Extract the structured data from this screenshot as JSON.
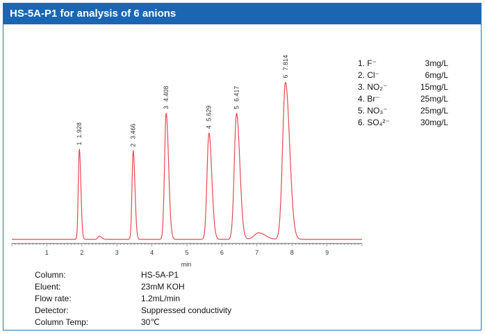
{
  "header": {
    "title": "HS-5A-P1 for analysis of 6 anions"
  },
  "legend": [
    {
      "ion": "1. F⁻",
      "conc": "3mg/L"
    },
    {
      "ion": "2. Cl⁻",
      "conc": "6mg/L"
    },
    {
      "ion": "3. NO₂⁻",
      "conc": "15mg/L"
    },
    {
      "ion": "4. Br⁻",
      "conc": "25mg/L"
    },
    {
      "ion": "5. NO₃⁻",
      "conc": "25mg/L"
    },
    {
      "ion": "6. SO₄²⁻",
      "conc": "30mg/L"
    }
  ],
  "conditions": [
    {
      "key": "Column:",
      "value": "HS-5A-P1"
    },
    {
      "key": "Eluent:",
      "value": "23mM KOH"
    },
    {
      "key": "Flow rate:",
      "value": "1.2mL/min"
    },
    {
      "key": "Detector:",
      "value": "Suppressed conductivity"
    },
    {
      "key": "Column Temp:",
      "value": "30℃"
    }
  ],
  "colors": {
    "trace": "#e8474f",
    "header": "#1a66b3",
    "frame": "#2a6fb8"
  },
  "chart_data": {
    "type": "line",
    "title": "HS-5A-P1 for analysis of 6 anions",
    "xlabel": "min",
    "ylabel": "",
    "xlim": [
      0,
      10
    ],
    "ylim": [
      0,
      1
    ],
    "xticks": [
      1,
      2,
      3,
      4,
      5,
      6,
      7,
      8,
      9
    ],
    "grid": false,
    "peaks": [
      {
        "id": "1",
        "rt": 1.928,
        "rt_label": "1.928",
        "height": 0.55,
        "width": 0.035
      },
      {
        "id": "2",
        "rt": 3.466,
        "rt_label": "3.466",
        "height": 0.54,
        "width": 0.04
      },
      {
        "id": "3",
        "rt": 4.408,
        "rt_label": "4.408",
        "height": 0.77,
        "width": 0.055
      },
      {
        "id": "4",
        "rt": 5.629,
        "rt_label": "5.629",
        "height": 0.65,
        "width": 0.065
      },
      {
        "id": "5",
        "rt": 6.417,
        "rt_label": "6.417",
        "height": 0.77,
        "width": 0.075
      },
      {
        "id": "6",
        "rt": 7.814,
        "rt_label": "7.814",
        "height": 0.96,
        "width": 0.095
      }
    ],
    "minor_peaks": [
      {
        "rt": 2.5,
        "height": 0.02,
        "width": 0.05
      },
      {
        "rt": 7.05,
        "height": 0.04,
        "width": 0.15
      }
    ]
  }
}
